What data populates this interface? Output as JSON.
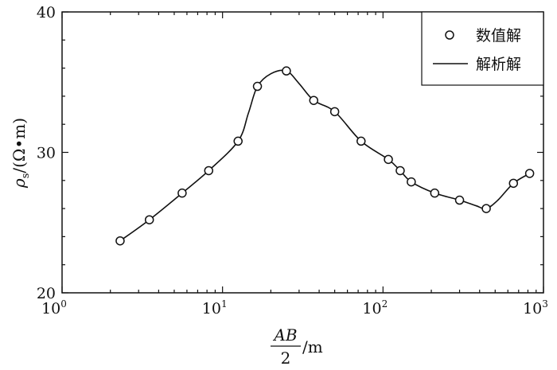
{
  "chart_data": {
    "type": "line",
    "x_scale": "log",
    "xlim": [
      1,
      1000
    ],
    "ylim": [
      20,
      40
    ],
    "x_ticks": [
      {
        "base": "10",
        "exp": "0"
      },
      {
        "base": "10",
        "exp": "1"
      },
      {
        "base": "10",
        "exp": "2"
      },
      {
        "base": "10",
        "exp": "3"
      }
    ],
    "y_ticks": [
      "20",
      "30",
      "40"
    ],
    "xlabel": {
      "numerator": "AB",
      "denominator": "2",
      "unit": "/m"
    },
    "ylabel": {
      "symbol": "ρ",
      "subscript": "s",
      "unit": "/(Ω•m)"
    },
    "legend_position": "top-right",
    "grid": false,
    "series": [
      {
        "name": "数值解",
        "style": "markers",
        "marker": "open-circle",
        "x": [
          2.3,
          3.5,
          5.6,
          8.2,
          12.5,
          16.5,
          25,
          37,
          50,
          73,
          108,
          128,
          150,
          210,
          300,
          440,
          650,
          820
        ],
        "y": [
          23.7,
          25.2,
          27.1,
          28.7,
          30.8,
          34.7,
          35.8,
          33.7,
          32.9,
          30.8,
          29.5,
          28.7,
          27.9,
          27.1,
          26.6,
          26.0,
          27.8,
          28.5
        ]
      },
      {
        "name": "解析解",
        "style": "line",
        "x": [
          2.3,
          3.5,
          5.6,
          8.2,
          12.5,
          14.5,
          16.5,
          20,
          25,
          30,
          37,
          50,
          73,
          108,
          128,
          150,
          210,
          300,
          380,
          440,
          520,
          650,
          820
        ],
        "y": [
          23.7,
          25.2,
          27.1,
          28.7,
          30.8,
          32.8,
          34.7,
          35.6,
          35.8,
          34.9,
          33.7,
          32.9,
          30.8,
          29.5,
          28.7,
          27.9,
          27.1,
          26.6,
          26.2,
          26.0,
          26.6,
          27.8,
          28.5
        ]
      }
    ]
  }
}
